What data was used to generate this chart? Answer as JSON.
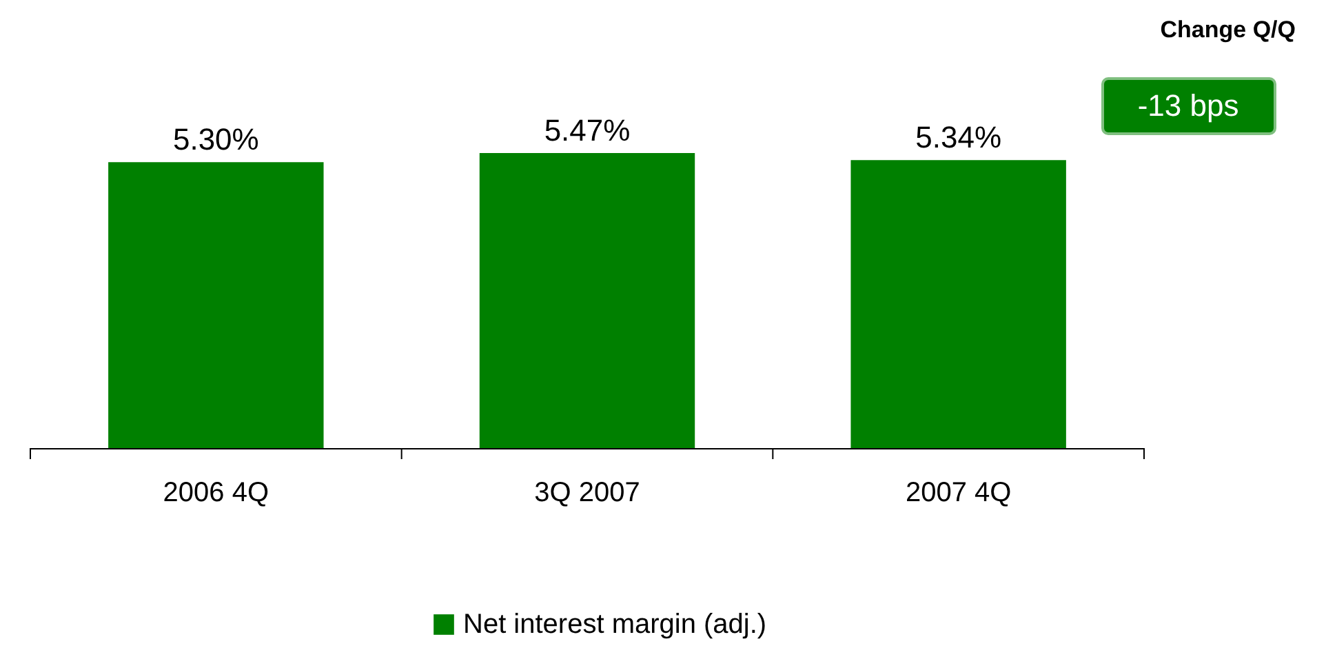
{
  "chart_data": {
    "type": "bar",
    "categories": [
      "2006 4Q",
      "3Q 2007",
      "2007 4Q"
    ],
    "series": [
      {
        "name": "Net interest margin (adj.)",
        "color": "#008000",
        "values": [
          5.3,
          5.47,
          5.34
        ],
        "value_labels": [
          "5.30%",
          "5.47%",
          "5.34%"
        ]
      }
    ],
    "annotations": [
      "Change Q/Q",
      "-13 bps"
    ],
    "legend": "bottom",
    "grid": false
  }
}
